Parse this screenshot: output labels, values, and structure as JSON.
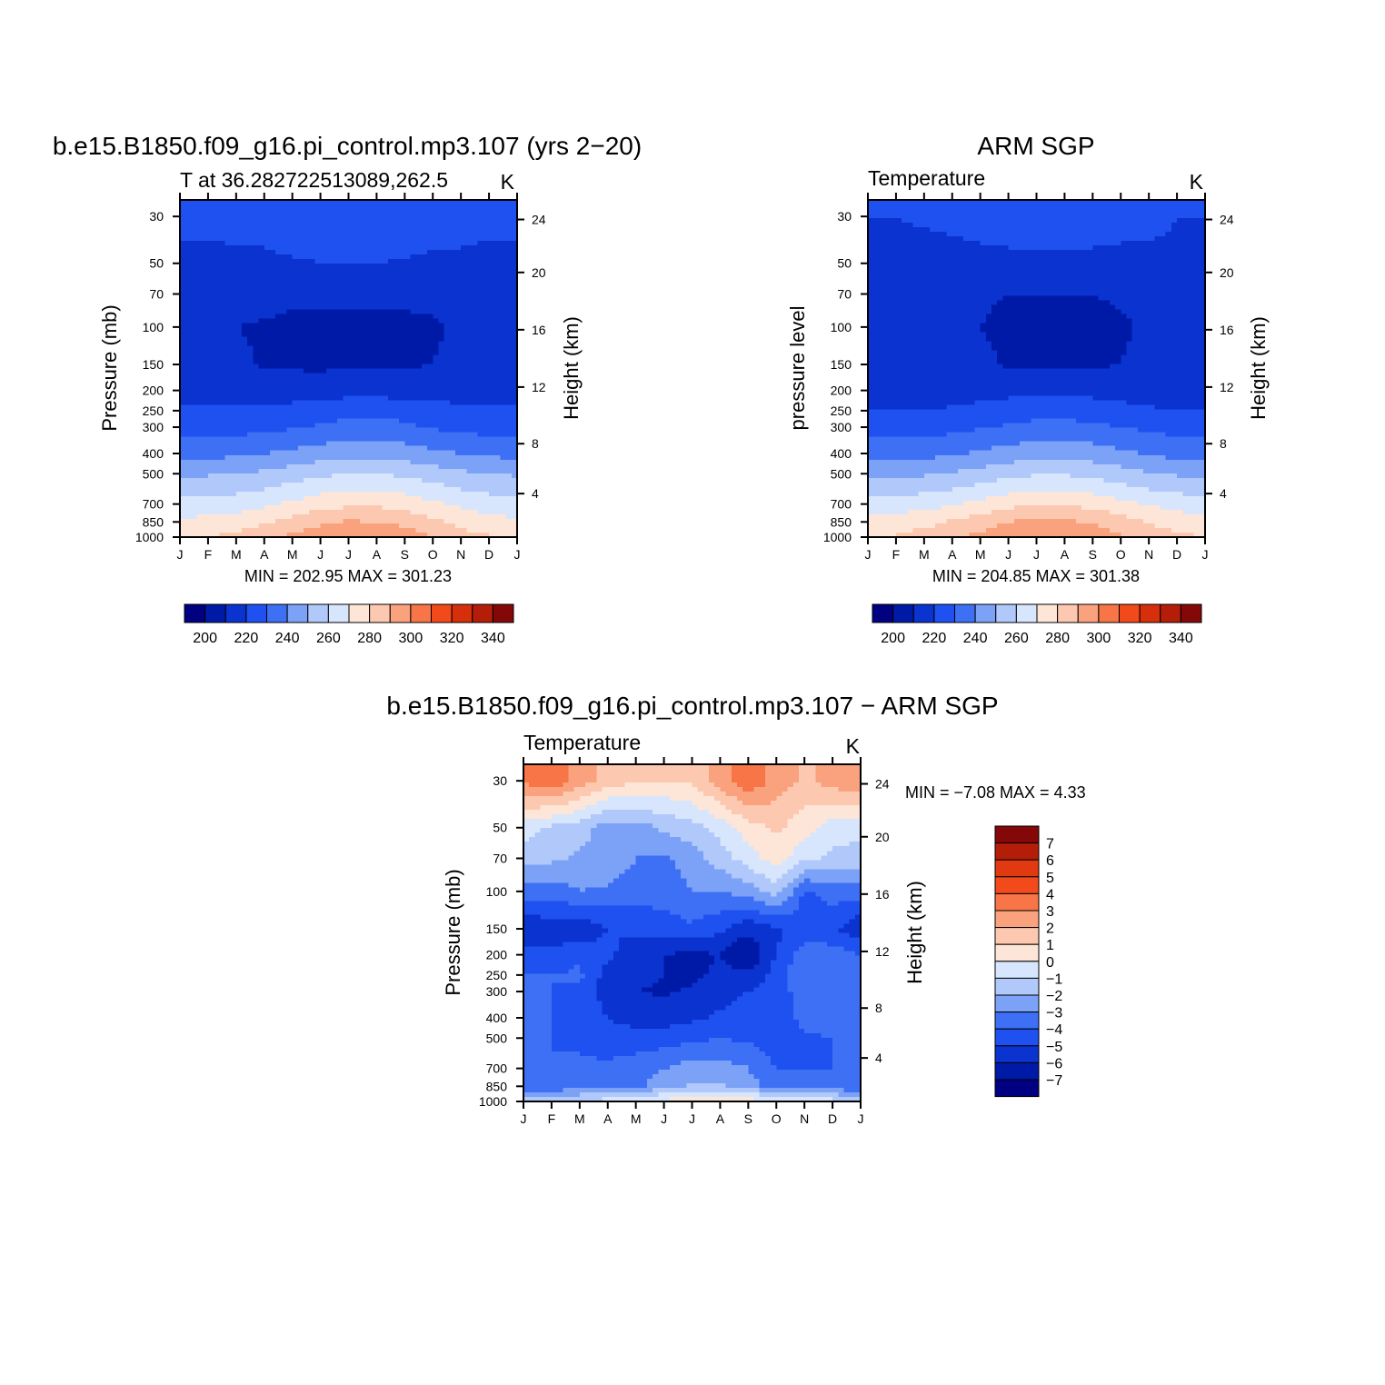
{
  "months": [
    "J",
    "F",
    "M",
    "A",
    "M",
    "J",
    "J",
    "A",
    "S",
    "O",
    "N",
    "D",
    "J"
  ],
  "pressure_ticks": [
    "30",
    "50",
    "70",
    "100",
    "150",
    "200",
    "250",
    "300",
    "400",
    "500",
    "700",
    "850",
    "1000"
  ],
  "height_ticks": [
    "24",
    "20",
    "16",
    "12",
    "8",
    "4"
  ],
  "abs_colors": [
    "#000080",
    "#001aa8",
    "#0a33d0",
    "#1f50f0",
    "#3d70f5",
    "#7ca2f7",
    "#b0c8fa",
    "#d7e6fd",
    "#fde6d7",
    "#fcc8b0",
    "#f9a27d",
    "#f77546",
    "#f24a1a",
    "#d6300a",
    "#b41e08",
    "#850808"
  ],
  "abs_labels": [
    "200",
    "220",
    "240",
    "260",
    "280",
    "300",
    "320",
    "340"
  ],
  "diff_colors": [
    "#000080",
    "#001aa8",
    "#0a33d0",
    "#1f50f0",
    "#3d70f5",
    "#7ca2f7",
    "#b0c8fa",
    "#d7e6fd",
    "#fde6d7",
    "#fcc8b0",
    "#f9a27d",
    "#f77546",
    "#f24a1a",
    "#e23a10",
    "#b41e08",
    "#850808"
  ],
  "diff_labels": [
    "7",
    "6",
    "5",
    "4",
    "3",
    "2",
    "1",
    "0",
    "−1",
    "−2",
    "−3",
    "−4",
    "−5",
    "−6",
    "−7"
  ],
  "panels": {
    "model": {
      "title": "b.e15.B1850.f09_g16.pi_control.mp3.107 (yrs 2−20)",
      "subtitle": "T at 36.282722513089,262.5",
      "units": "K",
      "ylabel": "Pressure (mb)",
      "y2label": "Height (km)",
      "stats": "MIN = 202.95 MAX = 301.23"
    },
    "obs": {
      "title": "ARM SGP",
      "subtitle": "Temperature",
      "units": "K",
      "ylabel": "pressure level",
      "y2label": "Height (km)",
      "stats": "MIN = 204.85 MAX = 301.38"
    },
    "diff": {
      "title": "b.e15.B1850.f09_g16.pi_control.mp3.107 − ARM SGP",
      "subtitle": "Temperature",
      "units": "K",
      "ylabel": "Pressure (mb)",
      "y2label": "Height (km)",
      "stats": "MIN = −7.08 MAX = 4.33"
    }
  },
  "chart_data": [
    {
      "type": "heatmap",
      "title": "b.e15.B1850.f09_g16.pi_control.mp3.107 (yrs 2−20)",
      "subtitle": "T at 36.282722513089,262.5",
      "units": "K",
      "ylabel": "Pressure (mb)",
      "y2label": "Height (km)",
      "x": [
        "J",
        "F",
        "M",
        "A",
        "M",
        "J",
        "J",
        "A",
        "S",
        "O",
        "N",
        "D",
        "J"
      ],
      "pressure_levels": [
        30,
        50,
        70,
        100,
        150,
        200,
        250,
        300,
        400,
        500,
        700,
        850,
        1000
      ],
      "height_km": [
        24,
        20,
        16,
        12,
        8,
        4
      ],
      "min": 202.95,
      "max": 301.23,
      "contour_levels": [
        200,
        210,
        220,
        230,
        240,
        250,
        260,
        270,
        280,
        290,
        300,
        310,
        320,
        330,
        340
      ],
      "values": [
        [
          222,
          222,
          223,
          224,
          226,
          227,
          228,
          229,
          228,
          226,
          224,
          222,
          222
        ],
        [
          218,
          218,
          218,
          218,
          219,
          220,
          220,
          220,
          219,
          218,
          218,
          218,
          218
        ],
        [
          213,
          213,
          213,
          213,
          212,
          212,
          212,
          212,
          212,
          212,
          213,
          214,
          213
        ],
        [
          211,
          211,
          210,
          209,
          208,
          207,
          207,
          207,
          208,
          209,
          211,
          212,
          211
        ],
        [
          212,
          212,
          212,
          209,
          209,
          208,
          209,
          209,
          209,
          210,
          212,
          213,
          212
        ],
        [
          216,
          216,
          216,
          214,
          214,
          215,
          216,
          216,
          216,
          216,
          216,
          217,
          216
        ],
        [
          222,
          222,
          222,
          222,
          224,
          226,
          227,
          227,
          226,
          224,
          222,
          222,
          222
        ],
        [
          226,
          226,
          226,
          227,
          229,
          231,
          233,
          233,
          232,
          229,
          227,
          226,
          226
        ],
        [
          237,
          237,
          238,
          240,
          242,
          245,
          247,
          247,
          245,
          242,
          240,
          238,
          237
        ],
        [
          249,
          249,
          250,
          252,
          255,
          258,
          260,
          260,
          258,
          255,
          252,
          250,
          249
        ],
        [
          263,
          264,
          265,
          268,
          272,
          276,
          278,
          278,
          276,
          272,
          268,
          265,
          263
        ],
        [
          272,
          273,
          275,
          279,
          283,
          288,
          291,
          290,
          287,
          282,
          277,
          274,
          272
        ],
        [
          279,
          280,
          283,
          287,
          292,
          297,
          301,
          300,
          296,
          290,
          284,
          281,
          279
        ]
      ]
    },
    {
      "type": "heatmap",
      "title": "ARM SGP",
      "subtitle": "Temperature",
      "units": "K",
      "ylabel": "pressure level",
      "y2label": "Height (km)",
      "x": [
        "J",
        "F",
        "M",
        "A",
        "M",
        "J",
        "J",
        "A",
        "S",
        "O",
        "N",
        "D",
        "J"
      ],
      "pressure_levels": [
        30,
        50,
        70,
        100,
        150,
        200,
        250,
        300,
        400,
        500,
        700,
        850,
        1000
      ],
      "height_km": [
        24,
        20,
        16,
        12,
        8,
        4
      ],
      "min": 204.85,
      "max": 301.38,
      "contour_levels": [
        200,
        210,
        220,
        230,
        240,
        250,
        260,
        270,
        280,
        290,
        300,
        310,
        320,
        330,
        340
      ],
      "values": [
        [
          220,
          220,
          221,
          222,
          224,
          226,
          227,
          227,
          226,
          224,
          222,
          220,
          220
        ],
        [
          218,
          218,
          217,
          217,
          217,
          217,
          217,
          217,
          217,
          217,
          218,
          219,
          218
        ],
        [
          214,
          214,
          210,
          212,
          211,
          210,
          210,
          210,
          210,
          211,
          212,
          210,
          214
        ],
        [
          212,
          212,
          213,
          212,
          210,
          208,
          207,
          207,
          208,
          209,
          211,
          213,
          212
        ],
        [
          213,
          213,
          214,
          214,
          212,
          209,
          208,
          208,
          209,
          210,
          212,
          214,
          213
        ],
        [
          216,
          216,
          216,
          216,
          216,
          217,
          218,
          218,
          217,
          216,
          216,
          216,
          216
        ],
        [
          220,
          220,
          220,
          221,
          223,
          225,
          226,
          226,
          225,
          223,
          221,
          220,
          220
        ],
        [
          226,
          226,
          226,
          227,
          229,
          231,
          233,
          233,
          232,
          230,
          228,
          226,
          226
        ],
        [
          236,
          236,
          237,
          239,
          241,
          244,
          246,
          246,
          245,
          242,
          239,
          237,
          236
        ],
        [
          248,
          248,
          249,
          251,
          254,
          257,
          259,
          259,
          257,
          254,
          251,
          249,
          248
        ],
        [
          264,
          265,
          266,
          269,
          273,
          277,
          279,
          279,
          277,
          273,
          269,
          266,
          264
        ],
        [
          274,
          275,
          277,
          281,
          285,
          290,
          293,
          292,
          289,
          284,
          279,
          276,
          274
        ],
        [
          280,
          281,
          284,
          288,
          293,
          298,
          301,
          300,
          297,
          291,
          285,
          282,
          280
        ]
      ]
    },
    {
      "type": "heatmap",
      "title": "b.e15.B1850.f09_g16.pi_control.mp3.107 − ARM SGP",
      "subtitle": "Temperature",
      "units": "K",
      "ylabel": "Pressure (mb)",
      "y2label": "Height (km)",
      "x": [
        "J",
        "F",
        "M",
        "A",
        "M",
        "J",
        "J",
        "A",
        "S",
        "O",
        "N",
        "D",
        "J"
      ],
      "pressure_levels": [
        30,
        50,
        70,
        100,
        150,
        200,
        250,
        300,
        400,
        500,
        700,
        850,
        1000
      ],
      "height_km": [
        24,
        20,
        16,
        12,
        8,
        4
      ],
      "min": -7.08,
      "max": 4.33,
      "contour_levels": [
        -7,
        -6,
        -5,
        -4,
        -3,
        -2,
        -1,
        0,
        1,
        2,
        3,
        4,
        5,
        6,
        7
      ],
      "values": [
        [
          3.2,
          3.8,
          2.5,
          1.5,
          1.2,
          1.0,
          1.2,
          2.5,
          3.8,
          2.6,
          1.8,
          2.4,
          3.0
        ],
        [
          -0.5,
          -1.2,
          -1.5,
          -2.5,
          -2.5,
          -1.8,
          -1.4,
          -0.6,
          0.6,
          1.2,
          0.4,
          -0.5,
          -0.6
        ],
        [
          -1.5,
          -1.8,
          -2.2,
          -2.2,
          -3.0,
          -3.2,
          -2.5,
          -1.5,
          -0.5,
          0.5,
          -0.8,
          -1.2,
          -1.5
        ],
        [
          -3.5,
          -3.5,
          -3.0,
          -3.2,
          -3.6,
          -3.5,
          -3.0,
          -3.0,
          -2.5,
          -1.5,
          -4.2,
          -3.5,
          -3.5
        ],
        [
          -6.0,
          -5.5,
          -5.8,
          -5.0,
          -4.8,
          -4.5,
          -4.2,
          -4.8,
          -5.8,
          -5.2,
          -4.5,
          -4.8,
          -5.8
        ],
        [
          -4.5,
          -4.8,
          -4.2,
          -4.8,
          -5.5,
          -6.0,
          -6.2,
          -6.0,
          -7.0,
          -5.0,
          -3.5,
          -3.5,
          -4.0
        ],
        [
          -4.0,
          -4.0,
          -3.8,
          -5.5,
          -5.8,
          -6.0,
          -6.2,
          -5.8,
          -5.8,
          -4.5,
          -3.0,
          -3.0,
          -3.5
        ],
        [
          -4.0,
          -4.0,
          -4.2,
          -5.5,
          -6.0,
          -6.1,
          -5.9,
          -5.5,
          -5.0,
          -4.8,
          -3.2,
          -3.0,
          -3.5
        ],
        [
          -4.0,
          -4.0,
          -4.5,
          -5.0,
          -5.5,
          -5.5,
          -5.2,
          -4.8,
          -4.5,
          -5.0,
          -3.5,
          -3.5,
          -3.8
        ],
        [
          -4.0,
          -4.0,
          -4.2,
          -4.5,
          -4.5,
          -4.5,
          -4.2,
          -4.0,
          -4.2,
          -4.6,
          -4.2,
          -4.0,
          -4.0
        ],
        [
          -4.0,
          -4.0,
          -3.8,
          -3.8,
          -3.5,
          -3.0,
          -2.5,
          -2.5,
          -3.0,
          -4.0,
          -4.0,
          -4.0,
          -4.0
        ],
        [
          -4.0,
          -3.8,
          -3.5,
          -3.5,
          -3.2,
          -2.5,
          -1.8,
          -1.8,
          -2.5,
          -3.5,
          -3.5,
          -3.5,
          -4.0
        ],
        [
          -1.5,
          -1.2,
          -0.8,
          -0.5,
          -0.2,
          0.4,
          0.6,
          0.6,
          0.6,
          0.2,
          -0.2,
          -0.5,
          -1.0
        ]
      ]
    }
  ]
}
